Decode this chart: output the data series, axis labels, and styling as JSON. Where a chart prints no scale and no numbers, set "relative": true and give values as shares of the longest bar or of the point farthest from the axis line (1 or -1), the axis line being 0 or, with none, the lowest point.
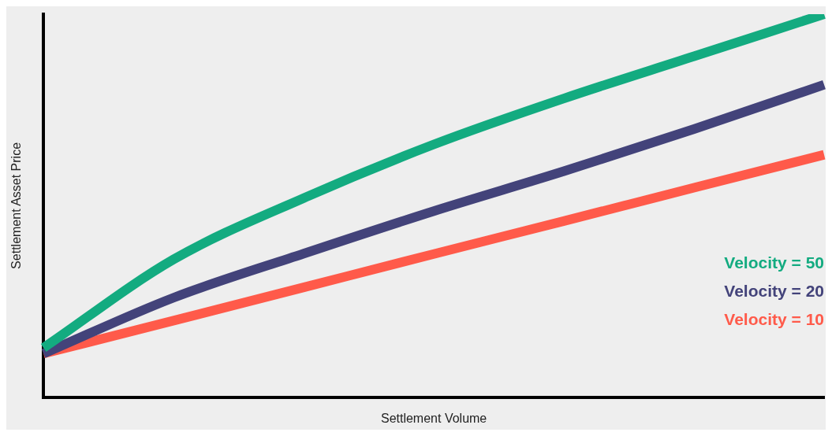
{
  "chart_data": {
    "type": "line",
    "xlabel": "Settlement Volume",
    "ylabel": "Settlement Asset Price",
    "relative": true,
    "grid": false,
    "marker": "none",
    "line_style": "solid",
    "categories": [
      null,
      null,
      null,
      null,
      null,
      null,
      null
    ],
    "series": [
      {
        "name": "Velocity = 50",
        "color": "#13ab80",
        "values": [
          0.129,
          0.36,
          0.52,
          0.66,
          0.78,
          0.89,
          1.0
        ]
      },
      {
        "name": "Velocity = 20",
        "color": "#43437a",
        "values": [
          0.114,
          0.26,
          0.375,
          0.486,
          0.59,
          0.7,
          0.816
        ]
      },
      {
        "name": "Velocity = 10",
        "color": "#ff5a4a",
        "values": [
          0.114,
          0.2,
          0.287,
          0.374,
          0.46,
          0.547,
          0.633
        ]
      }
    ]
  }
}
